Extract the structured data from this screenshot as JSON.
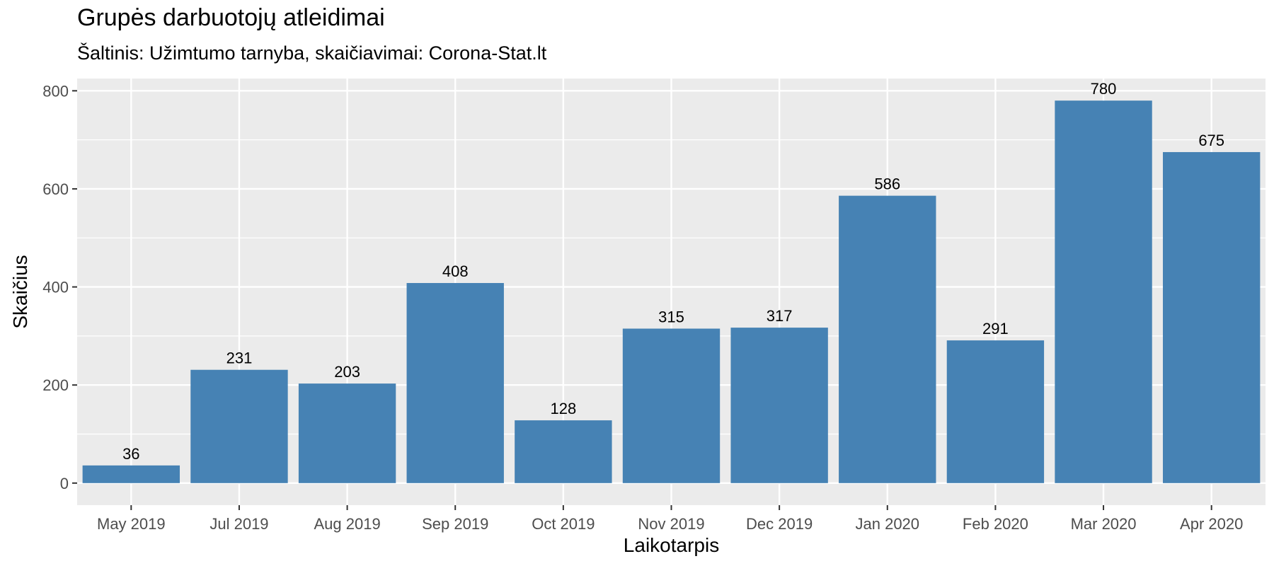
{
  "chart_data": {
    "type": "bar",
    "title": "Grupės darbuotojų atleidimai",
    "subtitle": "Šaltinis: Užimtumo tarnyba, skaičiavimai: Corona-Stat.lt",
    "xlabel": "Laikotarpis",
    "ylabel": "Skaičius",
    "categories": [
      "May 2019",
      "Jul 2019",
      "Aug 2019",
      "Sep 2019",
      "Oct 2019",
      "Nov 2019",
      "Dec 2019",
      "Jan 2020",
      "Feb 2020",
      "Mar 2020",
      "Apr 2020"
    ],
    "values": [
      36,
      231,
      203,
      408,
      128,
      315,
      317,
      586,
      291,
      780,
      675
    ],
    "ylim": [
      -45,
      825
    ],
    "yticks": [
      0,
      200,
      400,
      600,
      800
    ],
    "grid": true,
    "bar_color": "#4682B4",
    "panel_color": "#EBEBEB"
  }
}
